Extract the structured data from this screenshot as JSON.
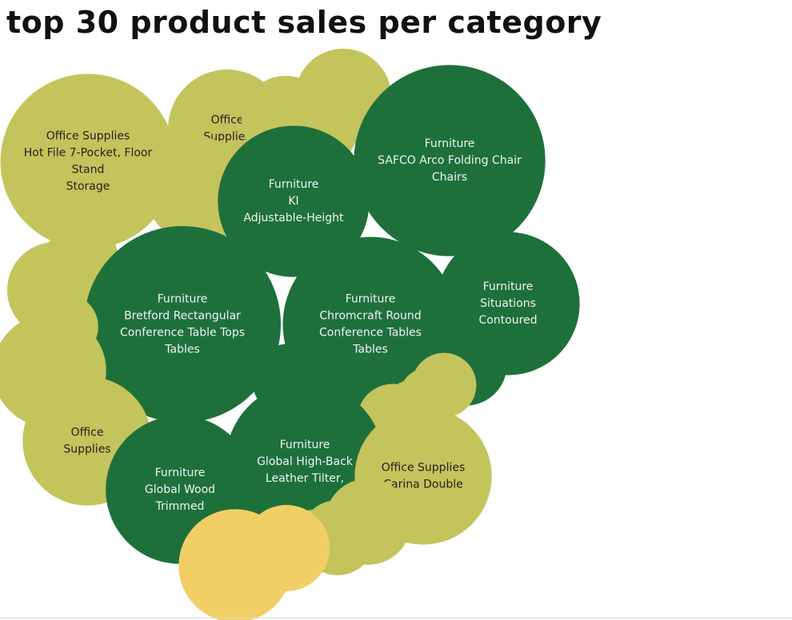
{
  "title": "top 30 product sales per category",
  "chart_data": {
    "type": "bubble",
    "title": "top 30 product sales per category",
    "colors": {
      "Furniture": "#1e703b",
      "Office Supplies": "#c4c45d",
      "Technology": "#f2cf65"
    },
    "label_colors": {
      "Furniture": "#f2f2f2",
      "Office Supplies": "#222222",
      "Technology": "#222222"
    },
    "bubbles": [
      {
        "category": "Office Supplies",
        "lines": [
          "Office Supplies",
          "Hot File 7-Pocket, Floor",
          "Stand",
          "Storage"
        ],
        "size": 103
      },
      {
        "category": "Office Supplies",
        "lines": [
          "Office",
          "Supplies"
        ],
        "size": 47
      },
      {
        "category": "Office Supplies",
        "lines": [],
        "size": 26
      },
      {
        "category": "Office Supplies",
        "lines": [],
        "size": 31
      },
      {
        "category": "Office Supplies",
        "lines": [],
        "size": 19
      },
      {
        "category": "Furniture",
        "lines": [
          "Furniture",
          "SAFCO Arco Folding Chair",
          "Chairs"
        ],
        "size": 123
      },
      {
        "category": "Office Supplies",
        "lines": [],
        "size": 38
      },
      {
        "category": "Furniture",
        "lines": [
          "Furniture",
          "KI",
          "Adjustable-Height"
        ],
        "size": 77
      },
      {
        "category": "Office Supplies",
        "lines": [],
        "size": 18
      },
      {
        "category": "Office Supplies",
        "lines": [],
        "size": 31
      },
      {
        "category": "Furniture",
        "lines": [
          "Furniture",
          "Bretford Rectangular",
          "Conference Table Tops",
          "Tables"
        ],
        "size": 130
      },
      {
        "category": "Office Supplies",
        "lines": [],
        "size": 15
      },
      {
        "category": "Furniture",
        "lines": [
          "Furniture",
          "Chromcraft Round",
          "Conference Tables",
          "Tables"
        ],
        "size": 103
      },
      {
        "category": "Furniture",
        "lines": [
          "Furniture",
          "Situations",
          "Contoured"
        ],
        "size": 69
      },
      {
        "category": "Office Supplies",
        "lines": [],
        "size": 43
      },
      {
        "category": "Furniture",
        "lines": [],
        "size": 18
      },
      {
        "category": "Furniture",
        "lines": [],
        "size": 23
      },
      {
        "category": "Office Supplies",
        "lines": [
          "Office",
          "Supplies"
        ],
        "size": 56
      },
      {
        "category": "Office Supplies",
        "lines": [],
        "size": 14
      },
      {
        "category": "Office Supplies",
        "lines": [],
        "size": 11
      },
      {
        "category": "Office Supplies",
        "lines": [],
        "size": 11
      },
      {
        "category": "Office Supplies",
        "lines": [],
        "size": 17
      },
      {
        "category": "Furniture",
        "lines": [
          "Furniture",
          "Global Wood",
          "Trimmed"
        ],
        "size": 74
      },
      {
        "category": "Furniture",
        "lines": [
          "Furniture",
          "Global High-Back",
          "Leather Tilter,"
        ],
        "size": 84
      },
      {
        "category": "Office Supplies",
        "lines": [
          "Office Supplies",
          "Carina Double"
        ],
        "size": 63
      },
      {
        "category": "Office Supplies",
        "lines": [],
        "size": 25
      },
      {
        "category": "Office Supplies",
        "lines": [],
        "size": 19
      },
      {
        "category": "Office Supplies",
        "lines": [],
        "size": 10
      },
      {
        "category": "Technology",
        "lines": [],
        "size": 43
      },
      {
        "category": "Technology",
        "lines": [],
        "size": 25
      }
    ]
  }
}
